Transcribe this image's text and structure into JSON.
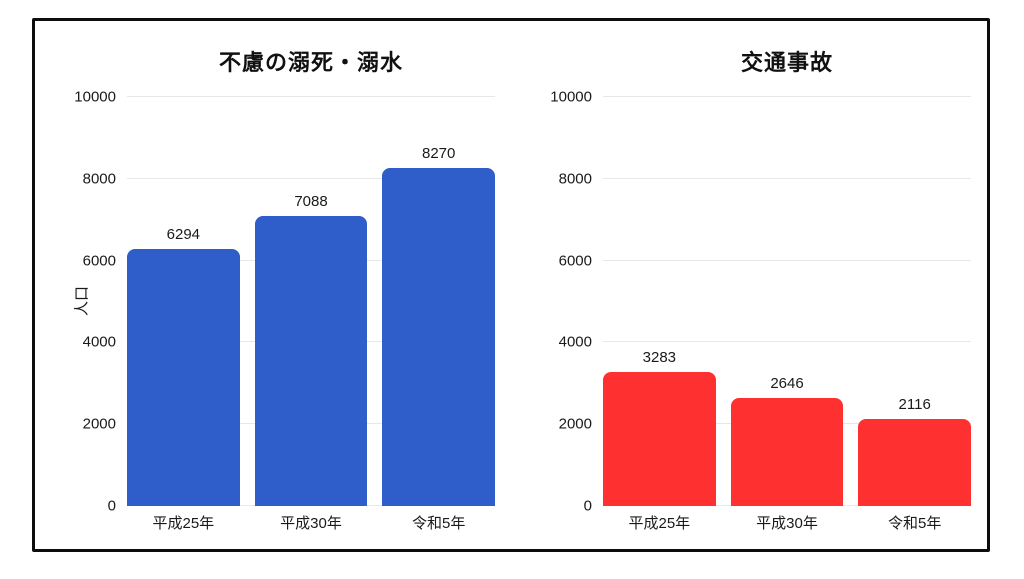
{
  "page": {
    "background_color": "#ffffff",
    "frame_border_color": "#0d0d0d"
  },
  "chart_data": [
    {
      "type": "bar",
      "title": "不慮の溺死・溺水",
      "ylabel": "人口",
      "xlabel": "",
      "categories": [
        "平成25年",
        "平成30年",
        "令和5年"
      ],
      "values": [
        6294,
        7088,
        8270
      ],
      "bar_labels": [
        "6294",
        "7088",
        "8270"
      ],
      "bar_color": "#2f5dc9",
      "ylim": [
        0,
        10000
      ],
      "yticks": [
        0,
        2000,
        4000,
        6000,
        8000,
        10000
      ],
      "grid": true,
      "legend": "none"
    },
    {
      "type": "bar",
      "title": "交通事故",
      "ylabel": "",
      "xlabel": "",
      "categories": [
        "平成25年",
        "平成30年",
        "令和5年"
      ],
      "values": [
        3283,
        2646,
        2116
      ],
      "bar_labels": [
        "3283",
        "2646",
        "2116"
      ],
      "bar_color": "#ff3030",
      "ylim": [
        0,
        10000
      ],
      "yticks": [
        0,
        2000,
        4000,
        6000,
        8000,
        10000
      ],
      "grid": true,
      "legend": "none"
    }
  ]
}
